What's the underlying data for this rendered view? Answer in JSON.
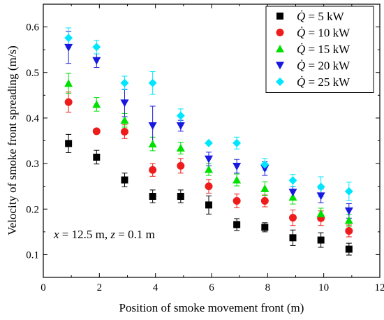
{
  "chart_data": {
    "type": "scatter",
    "xlabel": "Position of smoke movement front (m)",
    "ylabel": "Velocity of smoke front spreading (m/s)",
    "xlim": [
      0,
      12
    ],
    "ylim": [
      0.05,
      0.65
    ],
    "x_ticks": [
      0,
      2,
      4,
      6,
      8,
      10,
      12
    ],
    "y_ticks": [
      0.1,
      0.2,
      0.3,
      0.4,
      0.5,
      0.6
    ],
    "x_tick_labels": [
      "0",
      "2",
      "4",
      "6",
      "8",
      "10",
      "12"
    ],
    "y_tick_labels": [
      "0.1",
      "0.2",
      "0.3",
      "0.4",
      "0.5",
      "0.6"
    ],
    "grid": false,
    "legend_position": "top-right",
    "annotation": {
      "parts": [
        "x",
        " = 12.5 m, ",
        "z",
        " = 0.1 m"
      ]
    },
    "series": [
      {
        "name": "Q̇ = 5 kW",
        "legend_symbol": "Q̇",
        "legend_value": " = 5 kW",
        "marker": "square",
        "color": "#000000",
        "x": [
          0.9,
          1.9,
          2.9,
          3.9,
          4.9,
          5.9,
          6.9,
          7.9,
          8.9,
          9.9,
          10.9
        ],
        "y": [
          0.344,
          0.314,
          0.264,
          0.228,
          0.228,
          0.209,
          0.166,
          0.16,
          0.137,
          0.132,
          0.112
        ],
        "err": [
          0.02,
          0.015,
          0.015,
          0.014,
          0.014,
          0.02,
          0.013,
          0.01,
          0.017,
          0.016,
          0.013
        ]
      },
      {
        "name": "Q̇ = 10 kW",
        "legend_symbol": "Q̇",
        "legend_value": " = 10 kW",
        "marker": "circle",
        "color": "#ee1c1c",
        "x": [
          0.9,
          1.9,
          2.9,
          3.9,
          4.9,
          5.9,
          6.9,
          7.9,
          8.9,
          9.9,
          10.9
        ],
        "y": [
          0.435,
          0.371,
          0.37,
          0.286,
          0.295,
          0.25,
          0.218,
          0.218,
          0.181,
          0.18,
          0.152
        ],
        "err": [
          0.022,
          0.0,
          0.015,
          0.014,
          0.016,
          0.015,
          0.015,
          0.013,
          0.017,
          0.016,
          0.013
        ]
      },
      {
        "name": "Q̇ = 15 kW",
        "legend_symbol": "Q̇",
        "legend_value": " = 15 kW",
        "marker": "triangle-up",
        "color": "#00e000",
        "x": [
          0.9,
          1.9,
          2.9,
          3.9,
          4.9,
          5.9,
          6.9,
          7.9,
          8.9,
          9.9,
          10.9
        ],
        "y": [
          0.476,
          0.43,
          0.395,
          0.343,
          0.334,
          0.287,
          0.264,
          0.245,
          0.226,
          0.19,
          0.175
        ],
        "err": [
          0.022,
          0.015,
          0.015,
          0.015,
          0.013,
          0.013,
          0.013,
          0.015,
          0.015,
          0.012,
          0.013
        ]
      },
      {
        "name": "Q̇ = 20 kW",
        "legend_symbol": "Q̇",
        "legend_value": " = 20 kW",
        "marker": "triangle-down",
        "color": "#1818e0",
        "x": [
          0.9,
          1.9,
          2.9,
          3.9,
          4.9,
          5.9,
          6.9,
          7.9,
          8.9,
          9.9,
          10.9
        ],
        "y": [
          0.555,
          0.526,
          0.433,
          0.383,
          0.383,
          0.31,
          0.294,
          0.289,
          0.237,
          0.229,
          0.196
        ],
        "err": [
          0.035,
          0.015,
          0.03,
          0.043,
          0.012,
          0.015,
          0.015,
          0.015,
          0.013,
          0.015,
          0.016
        ]
      },
      {
        "name": "Q̇ = 25 kW",
        "legend_symbol": "Q̇",
        "legend_value": " = 25 kW",
        "marker": "diamond",
        "color": "#00e6ff",
        "x": [
          0.9,
          1.9,
          2.9,
          3.9,
          4.9,
          5.9,
          6.9,
          7.9,
          8.9,
          9.9,
          10.9
        ],
        "y": [
          0.576,
          0.556,
          0.477,
          0.477,
          0.405,
          0.345,
          0.345,
          0.298,
          0.263,
          0.249,
          0.239
        ],
        "err": [
          0.022,
          0.015,
          0.015,
          0.025,
          0.015,
          0.0,
          0.013,
          0.013,
          0.013,
          0.022,
          0.02
        ]
      }
    ]
  }
}
